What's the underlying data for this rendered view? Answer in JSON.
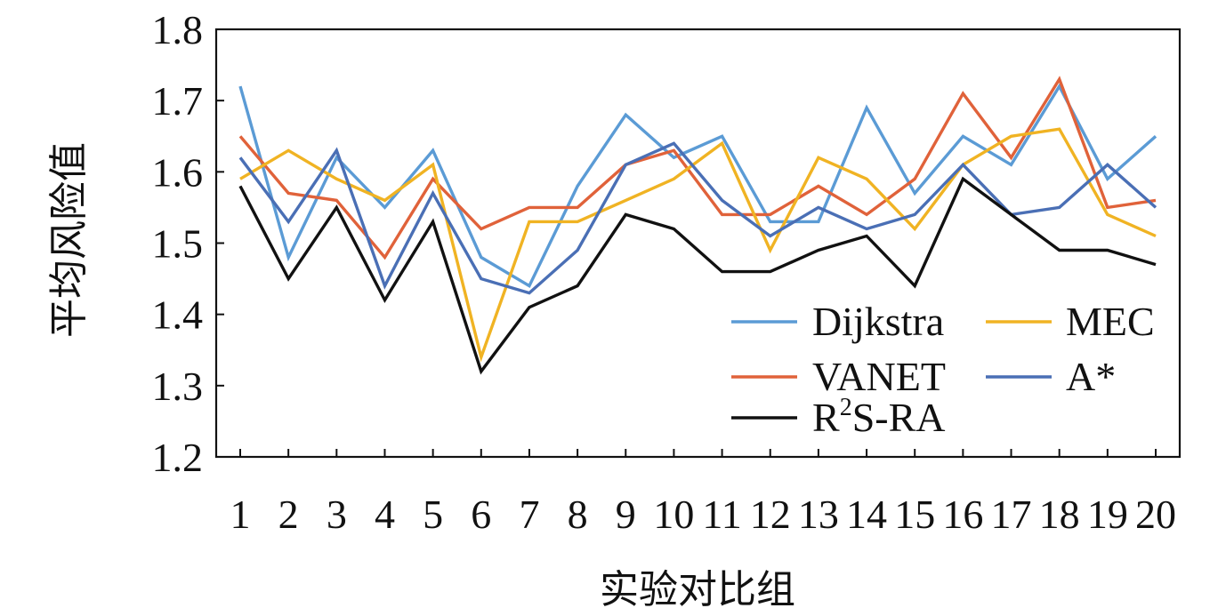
{
  "chart_data": {
    "type": "line",
    "title": "",
    "xlabel": "实验对比组",
    "ylabel": "平均风险值",
    "x": [
      1,
      2,
      3,
      4,
      5,
      6,
      7,
      8,
      9,
      10,
      11,
      12,
      13,
      14,
      15,
      16,
      17,
      18,
      19,
      20
    ],
    "xtick_labels": [
      "1",
      "2",
      "3",
      "4",
      "5",
      "6",
      "7",
      "8",
      "9",
      "10",
      "11",
      "12",
      "13",
      "14",
      "15",
      "16",
      "17",
      "18",
      "19",
      "20"
    ],
    "ylim": [
      1.2,
      1.8
    ],
    "yticks": [
      1.2,
      1.3,
      1.4,
      1.5,
      1.6,
      1.7,
      1.8
    ],
    "ytick_labels": [
      "1.2",
      "1.3",
      "1.4",
      "1.5",
      "1.6",
      "1.7",
      "1.8"
    ],
    "grid": false,
    "legend_placement": "bottom-right",
    "series": [
      {
        "name": "Dijkstra",
        "color": "#5b9bd5",
        "values": [
          1.72,
          1.48,
          1.62,
          1.55,
          1.63,
          1.48,
          1.44,
          1.58,
          1.68,
          1.62,
          1.65,
          1.53,
          1.53,
          1.69,
          1.57,
          1.65,
          1.61,
          1.72,
          1.59,
          1.65
        ]
      },
      {
        "name": "MEC",
        "color": "#f0b323",
        "values": [
          1.59,
          1.63,
          1.59,
          1.56,
          1.61,
          1.34,
          1.53,
          1.53,
          1.56,
          1.59,
          1.64,
          1.49,
          1.62,
          1.59,
          1.52,
          1.61,
          1.65,
          1.66,
          1.54,
          1.51
        ]
      },
      {
        "name": "VANET",
        "color": "#e0623a",
        "values": [
          1.65,
          1.57,
          1.56,
          1.48,
          1.59,
          1.52,
          1.55,
          1.55,
          1.61,
          1.63,
          1.54,
          1.54,
          1.58,
          1.54,
          1.59,
          1.71,
          1.62,
          1.73,
          1.55,
          1.56
        ]
      },
      {
        "name": "A*",
        "color": "#4a6fb5",
        "values": [
          1.62,
          1.53,
          1.63,
          1.44,
          1.57,
          1.45,
          1.43,
          1.49,
          1.61,
          1.64,
          1.56,
          1.51,
          1.55,
          1.52,
          1.54,
          1.61,
          1.54,
          1.55,
          1.61,
          1.55
        ]
      },
      {
        "name_parts": [
          "R",
          "2",
          "S-RA"
        ],
        "name": "R2S-RA",
        "color": "#111111",
        "values": [
          1.58,
          1.45,
          1.55,
          1.42,
          1.53,
          1.32,
          1.41,
          1.44,
          1.54,
          1.52,
          1.46,
          1.46,
          1.49,
          1.51,
          1.44,
          1.59,
          1.54,
          1.49,
          1.49,
          1.47
        ]
      }
    ]
  }
}
